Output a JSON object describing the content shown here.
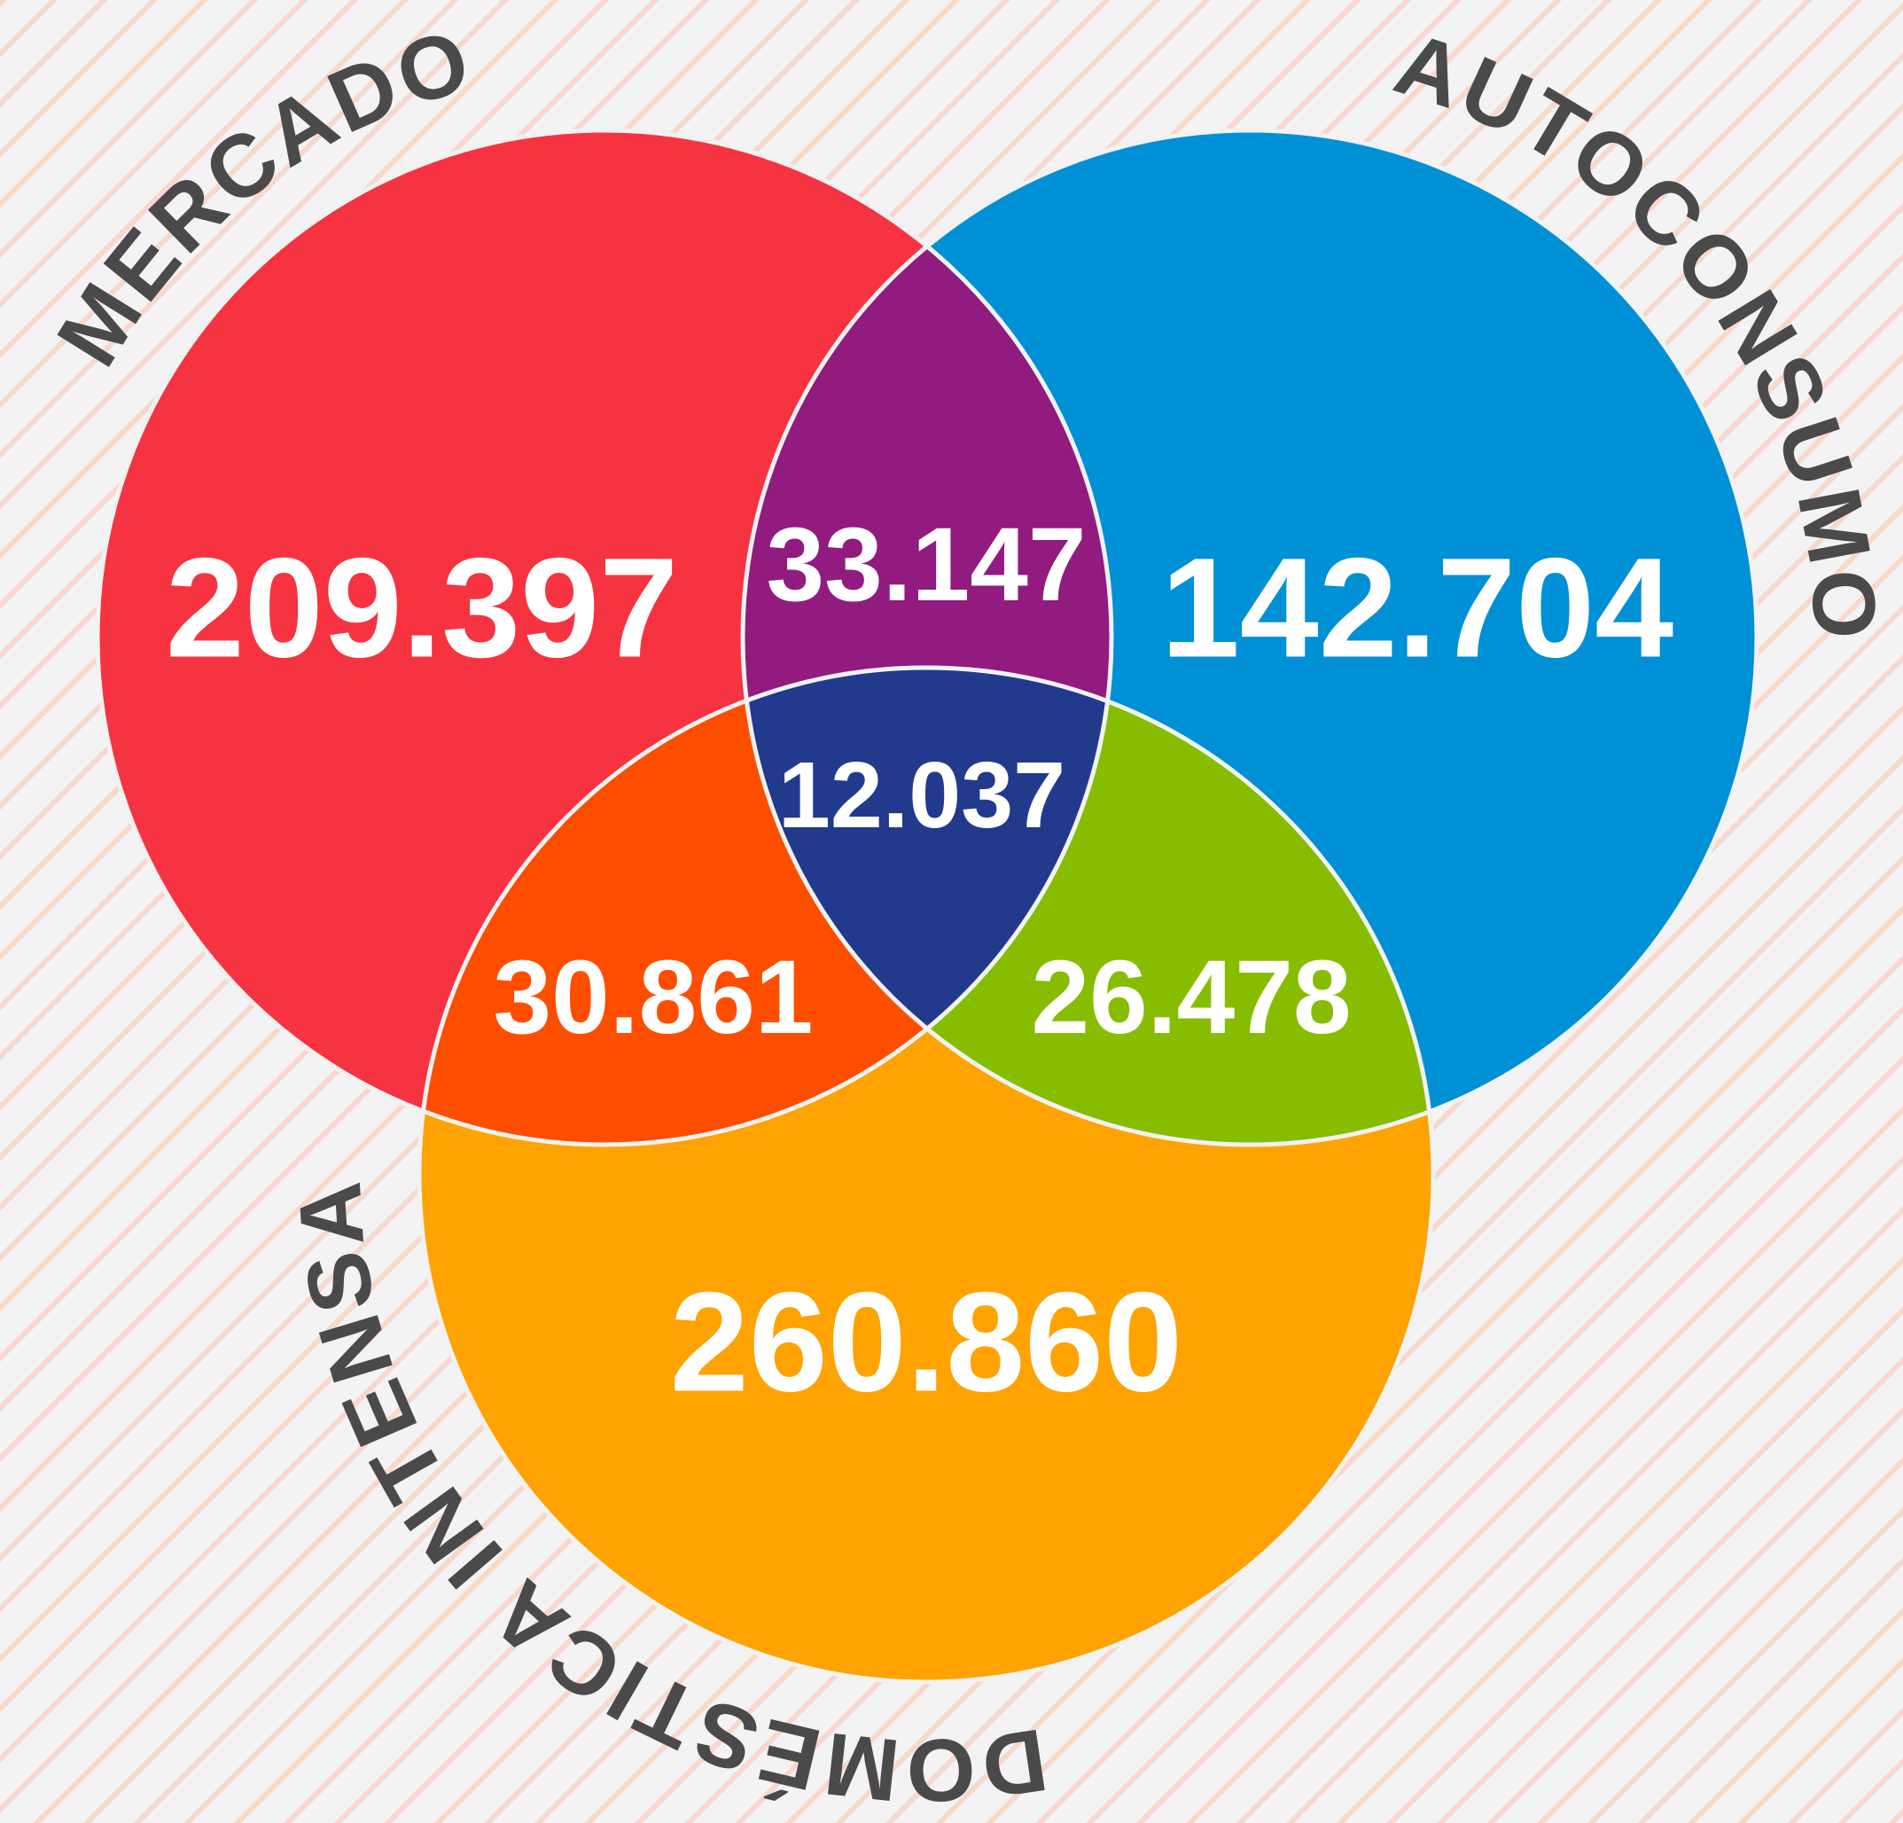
{
  "sets": [
    {
      "label": "MERCADO"
    },
    {
      "label": "AUTOCONSUMO"
    },
    {
      "label": "DOMÉSTICA INTENSA"
    }
  ],
  "regions": {
    "mercado_only": "209.397",
    "autoconsumo_only": "142.704",
    "domestica_only": "260.860",
    "mercado_autoconsumo": "33.147",
    "all_three": "12.037",
    "mercado_domestica": "30.861",
    "autoconsumo_domestica": "26.478"
  }
}
